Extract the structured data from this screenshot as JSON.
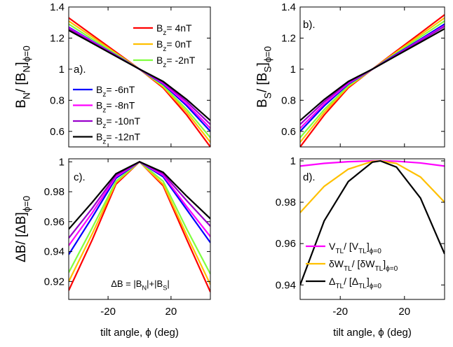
{
  "chart_data": [
    {
      "type": "line",
      "panel_label": "a).",
      "ylabel": [
        "B",
        "N",
        "/ [B",
        "N",
        "]",
        "ϕ=0"
      ],
      "x": [
        -45,
        -30,
        -15,
        0,
        15,
        30,
        45
      ],
      "xlim": [
        -45,
        45
      ],
      "xticks": [
        -20,
        20
      ],
      "show_xticklabels": false,
      "ylim": [
        0.5,
        1.4
      ],
      "yticks": [
        0.6,
        0.8,
        1,
        1.2,
        1.4
      ],
      "series": [
        {
          "name": [
            "B",
            "z",
            "= 4nT"
          ],
          "color": "#ff0000",
          "values": [
            1.33,
            1.22,
            1.11,
            1.0,
            0.88,
            0.705,
            0.5
          ]
        },
        {
          "name": [
            "B",
            "z",
            "= 0nT"
          ],
          "color": "#ffc000",
          "values": [
            1.31,
            1.207,
            1.103,
            1.0,
            0.887,
            0.723,
            0.53
          ]
        },
        {
          "name": [
            "B",
            "z",
            "= -2nT"
          ],
          "color": "#80ff40",
          "values": [
            1.29,
            1.193,
            1.097,
            1.0,
            0.894,
            0.74,
            0.56
          ]
        },
        {
          "name": [
            "B",
            "z",
            "= -6nT"
          ],
          "color": "#0000ff",
          "values": [
            1.27,
            1.18,
            1.09,
            1.0,
            0.904,
            0.764,
            0.6
          ]
        },
        {
          "name": [
            "B",
            "z",
            "= -8nT"
          ],
          "color": "#ff00ff",
          "values": [
            1.265,
            1.177,
            1.088,
            1.0,
            0.909,
            0.776,
            0.62
          ]
        },
        {
          "name": [
            "B",
            "z",
            "= -10nT"
          ],
          "color": "#9900cc",
          "values": [
            1.26,
            1.173,
            1.087,
            1.0,
            0.915,
            0.791,
            0.645
          ]
        },
        {
          "name": [
            "B",
            "z",
            "= -12nT"
          ],
          "color": "#000000",
          "values": [
            1.25,
            1.167,
            1.083,
            1.0,
            0.921,
            0.805,
            0.67
          ]
        }
      ]
    },
    {
      "type": "line",
      "panel_label": "b).",
      "ylabel": [
        "B",
        "S",
        "/ [B",
        "S",
        "]",
        "ϕ=0"
      ],
      "x": [
        -45,
        -30,
        -15,
        0,
        15,
        30,
        45
      ],
      "xlim": [
        -45,
        45
      ],
      "xticks": [
        -20,
        20
      ],
      "show_xticklabels": false,
      "ylim": [
        0.5,
        1.4
      ],
      "yticks": [
        0.6,
        0.8,
        1,
        1.2,
        1.4
      ],
      "series": [
        {
          "color": "#ff0000",
          "values": [
            0.5,
            0.705,
            0.88,
            1.0,
            1.117,
            1.233,
            1.35
          ]
        },
        {
          "color": "#ffc000",
          "values": [
            0.53,
            0.723,
            0.887,
            1.0,
            1.11,
            1.22,
            1.33
          ]
        },
        {
          "color": "#80ff40",
          "values": [
            0.56,
            0.74,
            0.894,
            1.0,
            1.103,
            1.207,
            1.31
          ]
        },
        {
          "color": "#0000ff",
          "values": [
            0.6,
            0.764,
            0.904,
            1.0,
            1.097,
            1.193,
            1.29
          ]
        },
        {
          "color": "#ff00ff",
          "values": [
            0.62,
            0.776,
            0.909,
            1.0,
            1.093,
            1.187,
            1.28
          ]
        },
        {
          "color": "#9900cc",
          "values": [
            0.645,
            0.791,
            0.915,
            1.0,
            1.092,
            1.183,
            1.275
          ]
        },
        {
          "color": "#000000",
          "values": [
            0.67,
            0.805,
            0.921,
            1.0,
            1.087,
            1.173,
            1.26
          ]
        }
      ]
    },
    {
      "type": "line",
      "panel_label": "c).",
      "ylabel": [
        "ΔB/ [ΔB]",
        "ϕ=0"
      ],
      "xlabel": "tilt angle, ϕ (deg)",
      "annotation": [
        "ΔB = |B",
        "N",
        "|+|B",
        "S",
        "|"
      ],
      "x": [
        -45,
        -30,
        -15,
        0,
        15,
        30,
        45
      ],
      "xlim": [
        -45,
        45
      ],
      "xticks": [
        -20,
        20
      ],
      "show_xticklabels": true,
      "ylim": [
        0.908,
        1.002
      ],
      "yticks": [
        0.92,
        0.94,
        0.96,
        0.98,
        1
      ],
      "series": [
        {
          "color": "#ff0000",
          "values": [
            0.914,
            0.948,
            0.985,
            1.0,
            0.984,
            0.948,
            0.913
          ]
        },
        {
          "color": "#ffc000",
          "values": [
            0.92,
            0.952,
            0.986,
            1.0,
            0.985,
            0.951,
            0.918
          ]
        },
        {
          "color": "#80ff40",
          "values": [
            0.926,
            0.956,
            0.987,
            1.0,
            0.987,
            0.955,
            0.925
          ]
        },
        {
          "color": "#0000ff",
          "values": [
            0.938,
            0.963,
            0.989,
            1.0,
            0.99,
            0.968,
            0.946
          ]
        },
        {
          "color": "#ff00ff",
          "values": [
            0.944,
            0.966,
            0.99,
            1.0,
            0.991,
            0.97,
            0.95
          ]
        },
        {
          "color": "#9900cc",
          "values": [
            0.949,
            0.969,
            0.991,
            1.0,
            0.992,
            0.974,
            0.957
          ]
        },
        {
          "color": "#000000",
          "values": [
            0.955,
            0.973,
            0.992,
            1.0,
            0.993,
            0.977,
            0.962
          ]
        }
      ]
    },
    {
      "type": "line",
      "panel_label": "d).",
      "xlabel": "tilt angle, ϕ (deg)",
      "x": [
        -45,
        -30,
        -15,
        0,
        5,
        15,
        30,
        45
      ],
      "xlim": [
        -45,
        45
      ],
      "xticks": [
        -20,
        20
      ],
      "show_xticklabels": true,
      "ylim": [
        0.933,
        1.001
      ],
      "yticks": [
        0.94,
        0.96,
        0.98,
        1
      ],
      "series": [
        {
          "name": [
            "V",
            "TL",
            "/ [V",
            "TL",
            "]",
            "ϕ=0"
          ],
          "color": "#ff00ff",
          "values": [
            0.9975,
            0.9988,
            0.9996,
            1.0,
            1.0,
            0.99984,
            0.999,
            0.9975
          ]
        },
        {
          "name": [
            "δW",
            "TL",
            "/ [δW",
            "TL",
            "]",
            "ϕ=0"
          ],
          "color": "#ffc000",
          "values": [
            0.975,
            0.9877,
            0.996,
            0.99975,
            1.0,
            0.99875,
            0.9922,
            0.98
          ]
        },
        {
          "name": [
            "Δ",
            "TL",
            "/ [Δ",
            "TL",
            "]",
            "ϕ=0"
          ],
          "color": "#000000",
          "values": [
            0.94,
            0.971,
            0.99,
            0.9994,
            1.0,
            0.997,
            0.982,
            0.955
          ]
        }
      ]
    }
  ]
}
